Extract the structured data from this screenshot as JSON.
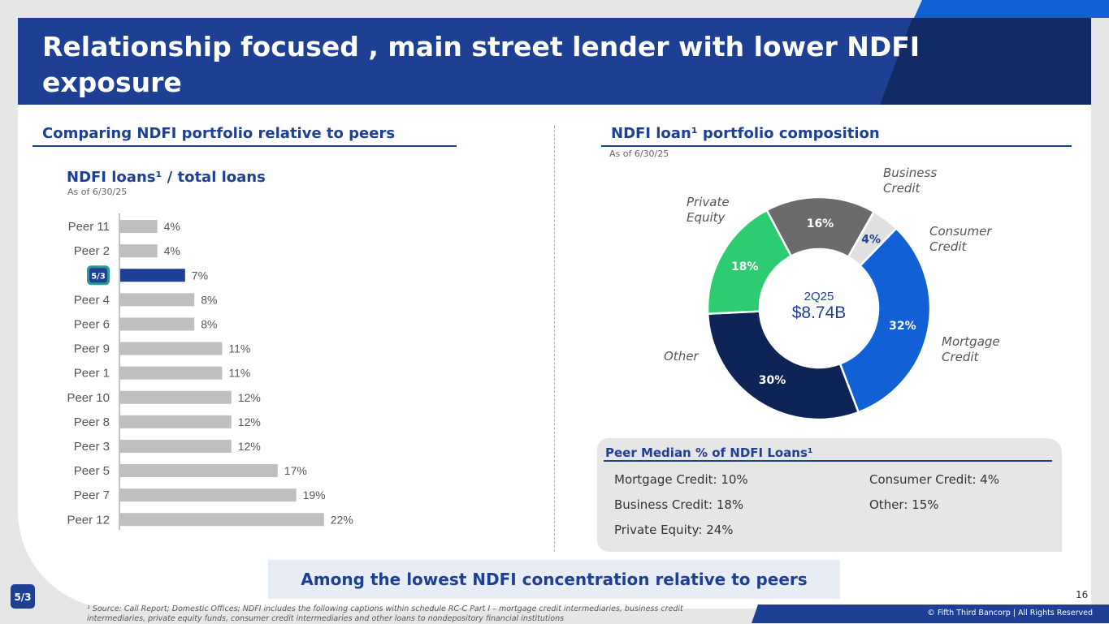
{
  "header": {
    "title": "Relationship focused , main street lender with lower NDFI exposure"
  },
  "left_panel": {
    "heading": "Comparing NDFI portfolio relative to peers",
    "chart_title": "NDFI loans¹ / total loans",
    "as_of": "As of 6/30/25"
  },
  "right_panel": {
    "heading": "NDFI loan¹ portfolio composition",
    "as_of": "As of 6/30/25"
  },
  "chart_data": [
    {
      "type": "bar",
      "orientation": "horizontal",
      "title": "NDFI loans¹ / total loans",
      "subtitle": "As of 6/30/25",
      "categories": [
        "Peer 11",
        "Peer 2",
        "",
        "Peer 4",
        "Peer 6",
        "Peer 9",
        "Peer 1",
        "Peer 10",
        "Peer 8",
        "Peer 3",
        "Peer 5",
        "Peer 7",
        "Peer 12"
      ],
      "values": [
        4,
        4,
        7,
        8,
        8,
        11,
        11,
        12,
        12,
        12,
        17,
        19,
        22
      ],
      "value_labels": [
        "4%",
        "4%",
        "7%",
        "8%",
        "8%",
        "11%",
        "11%",
        "12%",
        "12%",
        "12%",
        "17%",
        "19%",
        "22%"
      ],
      "highlight_index": 2,
      "highlight_icon": "fifth-third-logo-icon",
      "colors": {
        "default": "#bfbfbf",
        "highlight": "#1d3f94"
      },
      "xlim": [
        0,
        25
      ],
      "grid": false
    },
    {
      "type": "pie",
      "style": "donut",
      "title": "NDFI loan¹ portfolio composition",
      "center_label": "2Q25",
      "center_value": "$8.74B",
      "slices": [
        {
          "label": "Business Credit",
          "value": 16,
          "value_label": "16%",
          "color": "#6b6b6b"
        },
        {
          "label": "Consumer Credit",
          "value": 4,
          "value_label": "4%",
          "color": "#e0e0e0"
        },
        {
          "label": "Mortgage Credit",
          "value": 32,
          "value_label": "32%",
          "color": "#1260d6"
        },
        {
          "label": "Other",
          "value": 30,
          "value_label": "30%",
          "color": "#0e2356"
        },
        {
          "label": "Private Equity",
          "value": 18,
          "value_label": "18%",
          "color": "#2ecc71"
        }
      ]
    }
  ],
  "peer_median": {
    "title": "Peer Median % of NDFI Loans¹",
    "items": [
      "Mortgage Credit: 10%",
      "Business Credit: 18%",
      "Private Equity: 24%",
      "Consumer Credit: 4%",
      "Other: 15%"
    ]
  },
  "callout": "Among the lowest NDFI concentration relative to peers",
  "footnote": "¹ Source: Call Report; Domestic Offices; NDFI includes the following captions within schedule RC-C Part I – mortgage credit intermediaries, business credit intermediaries, private equity funds, consumer credit intermediaries and other loans to nondepository financial institutions",
  "page_number": "16",
  "copyright": "© Fifth Third Bancorp | All Rights Reserved",
  "logo_text": "5/3"
}
